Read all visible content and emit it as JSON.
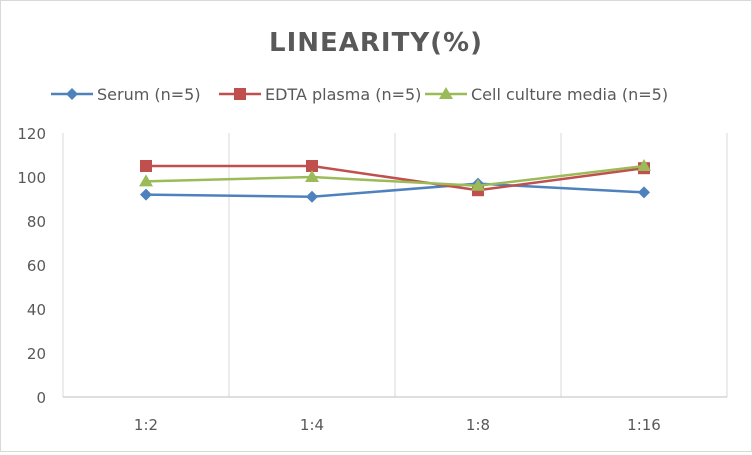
{
  "chart_data": {
    "type": "line",
    "title": "LINEARITY(%)",
    "categories": [
      "1:2",
      "1:4",
      "1:8",
      "1:16"
    ],
    "ylim": [
      0,
      120
    ],
    "yticks": [
      0,
      20,
      40,
      60,
      80,
      100,
      120
    ],
    "grid": "vertical",
    "legend_position": "top",
    "series": [
      {
        "name": "Serum (n=5)",
        "values": [
          92,
          91,
          97,
          93
        ],
        "color": "#4f81bd",
        "marker": "diamond"
      },
      {
        "name": "EDTA plasma (n=5)",
        "values": [
          105,
          105,
          94,
          104
        ],
        "color": "#c0504d",
        "marker": "square"
      },
      {
        "name": "Cell culture media (n=5)",
        "values": [
          98,
          100,
          96,
          105
        ],
        "color": "#9bbb59",
        "marker": "triangle"
      }
    ]
  }
}
